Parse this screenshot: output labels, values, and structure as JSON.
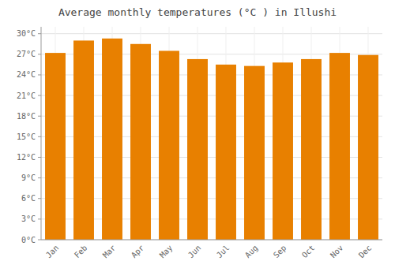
{
  "chart_data": {
    "type": "bar",
    "title": "Average monthly temperatures (°C ) in Illushi",
    "categories": [
      "Jan",
      "Feb",
      "Mar",
      "Apr",
      "May",
      "Jun",
      "Jul",
      "Aug",
      "Sep",
      "Oct",
      "Nov",
      "Dec"
    ],
    "values": [
      27.2,
      29.0,
      29.3,
      28.5,
      27.5,
      26.3,
      25.5,
      25.3,
      25.8,
      26.3,
      27.2,
      26.9
    ],
    "color": "#E88000",
    "ylim": [
      0,
      31
    ],
    "yticks": [
      {
        "value": 0,
        "label": "0°C"
      },
      {
        "value": 3,
        "label": "3°C"
      },
      {
        "value": 6,
        "label": "6°C"
      },
      {
        "value": 9,
        "label": "9°C"
      },
      {
        "value": 12,
        "label": "12°C"
      },
      {
        "value": 15,
        "label": "15°C"
      },
      {
        "value": 18,
        "label": "18°C"
      },
      {
        "value": 21,
        "label": "21°C"
      },
      {
        "value": 24,
        "label": "24°C"
      },
      {
        "value": 27,
        "label": "27°C"
      },
      {
        "value": 30,
        "label": "30°C"
      }
    ],
    "grid": true
  }
}
